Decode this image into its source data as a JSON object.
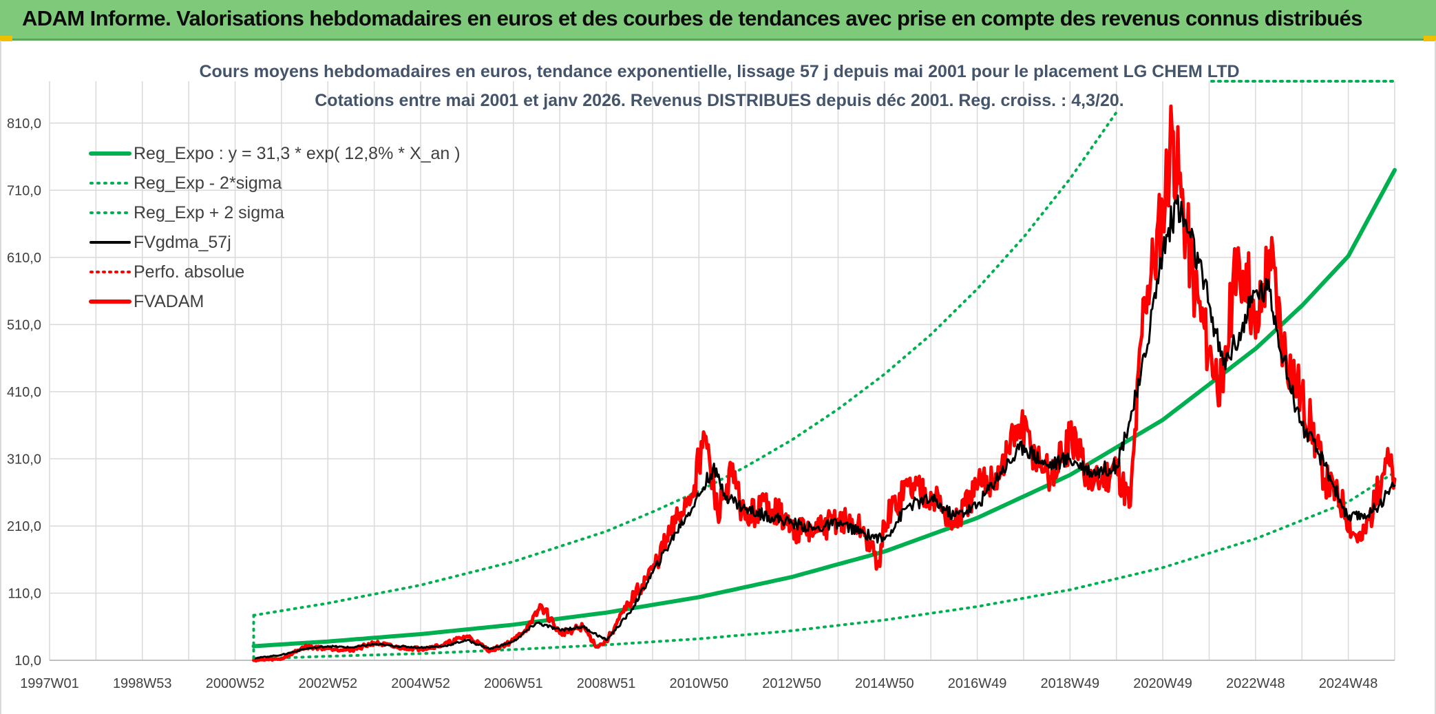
{
  "header": {
    "title": "ADAM Informe. Valorisations hebdomadaires en euros et des courbes de tendances avec prise en compte des revenus connus distribués"
  },
  "colors": {
    "header_bg": "#7fc97a",
    "trend_green": "#00b050",
    "price_red": "#ff0000",
    "smooth_black": "#000000",
    "grid": "#d9d9d9",
    "title_text": "#44546a"
  },
  "chart_data": {
    "type": "line",
    "title_line1": "Cours moyens hebdomadaires en euros, tendance exponentielle, lissage 57 j depuis mai 2001 pour le placement LG CHEM LTD",
    "title_line2": "Cotations entre mai 2001 et janv 2026. Revenus DISTRIBUES depuis déc 2001. Reg. croiss. : 4,3/20.",
    "x_unit": "year",
    "xlim": [
      1997.0,
      2026.0
    ],
    "ylim": [
      10,
      860
    ],
    "y_ticks": [
      10,
      110,
      210,
      310,
      410,
      510,
      610,
      710,
      810
    ],
    "y_tick_labels": [
      "10,0",
      "110,0",
      "210,0",
      "310,0",
      "410,0",
      "510,0",
      "610,0",
      "710,0",
      "810,0"
    ],
    "x_ticks": [
      1997.0,
      1999.0,
      2001.0,
      2003.0,
      2005.0,
      2007.0,
      2009.0,
      2011.0,
      2013.0,
      2015.0,
      2017.0,
      2019.0,
      2021.0,
      2023.0,
      2025.0
    ],
    "x_tick_labels": [
      "1997W01",
      "1998W53",
      "2000W52",
      "2002W52",
      "2004W52",
      "2006W51",
      "2008W51",
      "2010W50",
      "2012W50",
      "2014W50",
      "2016W49",
      "2018W49",
      "2020W49",
      "2022W48",
      "2024W48"
    ],
    "legend_position": "top-left",
    "legend": [
      {
        "name": "Reg_Expo : y = 31,3 * exp( 12,8% *  X_an )",
        "style": "solid-green-thick"
      },
      {
        "name": "Reg_Exp - 2*sigma",
        "style": "dotted-green"
      },
      {
        "name": "Reg_Exp + 2 sigma",
        "style": "dotted-green"
      },
      {
        "name": "FVgdma_57j",
        "style": "solid-black"
      },
      {
        "name": "Perfo. absolue",
        "style": "dotted-red"
      },
      {
        "name": "FVADAM",
        "style": "solid-red-thick"
      }
    ],
    "series": [
      {
        "name": "Reg_Expo : y = 31,3 * exp( 12,8% *  X_an )",
        "x": [
          2001.4,
          2003.0,
          2005.0,
          2007.0,
          2009.0,
          2011.0,
          2013.0,
          2015.0,
          2017.0,
          2019.0,
          2021.0,
          2023.0,
          2024.0,
          2025.0,
          2026.0
        ],
        "values": [
          31,
          38,
          49,
          63,
          81,
          104,
          134,
          172,
          222,
          286,
          368,
          474,
          538,
          612,
          740
        ]
      },
      {
        "name": "Reg_Exp - 2*sigma",
        "x": [
          2001.4,
          2003.0,
          2005.0,
          2007.0,
          2009.0,
          2011.0,
          2013.0,
          2015.0,
          2017.0,
          2019.0,
          2021.0,
          2023.0,
          2025.0,
          2026.0
        ],
        "values": [
          12,
          16,
          20,
          26,
          33,
          42,
          54,
          70,
          90,
          115,
          148,
          191,
          246,
          290
        ]
      },
      {
        "name": "Reg_Exp + 2 sigma",
        "x": [
          2001.4,
          2003.0,
          2005.0,
          2007.0,
          2009.0,
          2010.0,
          2011.0,
          2012.0,
          2013.0,
          2014.0,
          2015.0,
          2016.0,
          2017.0,
          2018.0,
          2019.0,
          2020.0
        ],
        "values": [
          77,
          95,
          122,
          157,
          202,
          231,
          262,
          298,
          338,
          384,
          436,
          495,
          563,
          640,
          727,
          826
        ]
      },
      {
        "name": "FVgdma_57j",
        "x": [
          2001.4,
          2002.0,
          2002.5,
          2003.0,
          2003.5,
          2004.0,
          2004.5,
          2005.0,
          2005.5,
          2006.0,
          2006.5,
          2007.0,
          2007.5,
          2008.0,
          2008.5,
          2009.0,
          2009.5,
          2010.0,
          2010.5,
          2011.0,
          2011.3,
          2011.6,
          2012.0,
          2012.5,
          2013.0,
          2013.5,
          2014.0,
          2014.5,
          2015.0,
          2015.5,
          2016.0,
          2016.5,
          2017.0,
          2017.5,
          2018.0,
          2018.5,
          2019.0,
          2019.5,
          2020.0,
          2020.5,
          2021.0,
          2021.3,
          2021.6,
          2022.0,
          2022.3,
          2022.7,
          2023.0,
          2023.3,
          2023.7,
          2024.0,
          2024.5,
          2025.0,
          2025.5,
          2026.0
        ],
        "values": [
          13,
          18,
          27,
          31,
          29,
          34,
          31,
          29,
          31,
          40,
          27,
          38,
          66,
          55,
          60,
          40,
          80,
          140,
          200,
          255,
          295,
          255,
          235,
          225,
          215,
          205,
          215,
          200,
          190,
          240,
          250,
          225,
          240,
          290,
          330,
          300,
          310,
          290,
          300,
          420,
          620,
          690,
          640,
          540,
          450,
          500,
          560,
          560,
          430,
          360,
          300,
          220,
          230,
          270
        ]
      },
      {
        "name": "FVADAM",
        "x": [
          2001.4,
          2002.0,
          2002.5,
          2003.0,
          2003.5,
          2004.0,
          2004.5,
          2005.0,
          2005.5,
          2006.0,
          2006.5,
          2007.0,
          2007.4,
          2007.6,
          2008.0,
          2008.5,
          2008.8,
          2009.0,
          2009.5,
          2010.0,
          2010.5,
          2010.9,
          2011.1,
          2011.4,
          2011.7,
          2012.0,
          2012.5,
          2013.0,
          2013.5,
          2014.0,
          2014.5,
          2014.9,
          2015.0,
          2015.5,
          2016.0,
          2016.5,
          2017.0,
          2017.5,
          2017.9,
          2018.3,
          2018.6,
          2019.0,
          2019.5,
          2020.0,
          2020.3,
          2020.6,
          2020.8,
          2021.0,
          2021.2,
          2021.4,
          2021.7,
          2022.0,
          2022.3,
          2022.5,
          2022.8,
          2023.0,
          2023.3,
          2023.6,
          2023.9,
          2024.2,
          2024.5,
          2024.9,
          2025.1,
          2025.3,
          2025.6,
          2025.8,
          2026.0
        ],
        "values": [
          10,
          12,
          30,
          28,
          25,
          36,
          29,
          27,
          33,
          46,
          24,
          39,
          66,
          92,
          50,
          60,
          30,
          38,
          95,
          145,
          215,
          270,
          350,
          230,
          285,
          220,
          245,
          205,
          200,
          220,
          205,
          150,
          215,
          270,
          260,
          210,
          265,
          290,
          360,
          310,
          280,
          340,
          270,
          300,
          240,
          550,
          600,
          680,
          800,
          700,
          560,
          470,
          410,
          560,
          600,
          490,
          620,
          480,
          420,
          360,
          280,
          240,
          200,
          190,
          250,
          310,
          280
        ]
      }
    ]
  }
}
